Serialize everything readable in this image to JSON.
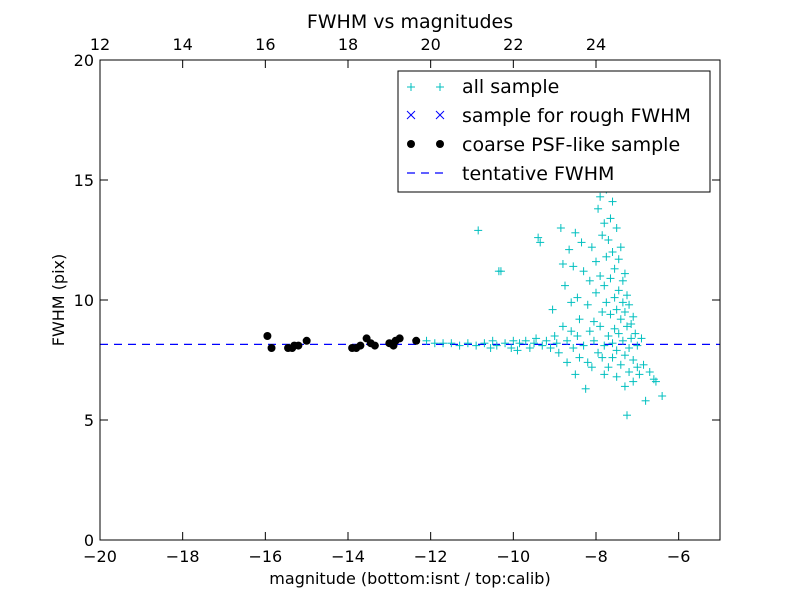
{
  "chart_data": {
    "type": "scatter",
    "title": "FWHM vs magnitudes",
    "xlabel": "magnitude (bottom:isnt / top:calib)",
    "ylabel": "FWHM (pix)",
    "xlim": [
      -20,
      -5
    ],
    "ylim": [
      0,
      20
    ],
    "x_ticks": [
      -20,
      -18,
      -16,
      -14,
      -12,
      -10,
      -8,
      -6
    ],
    "y_ticks": [
      0,
      5,
      10,
      15,
      20
    ],
    "top_axis": {
      "ticks": [
        12,
        14,
        16,
        18,
        20,
        22,
        24
      ],
      "offset_from_bottom": 32.0
    },
    "grid": false,
    "legend": {
      "placement": "top-right",
      "entries": [
        {
          "label": "all sample",
          "marker": "+",
          "color": "#00bfbf"
        },
        {
          "label": "sample for rough FWHM",
          "marker": "x",
          "color": "#0000ff"
        },
        {
          "label": "coarse PSF-like sample",
          "marker": "o",
          "color": "#000000"
        },
        {
          "label": "tentative FWHM",
          "marker": "--",
          "color": "#0000ff"
        }
      ]
    },
    "tentative_fwhm": 8.15,
    "series": [
      {
        "name": "all sample",
        "marker": "+",
        "color": "#00bfbf",
        "points": [
          [
            -12.1,
            8.3
          ],
          [
            -11.9,
            8.2
          ],
          [
            -11.7,
            8.2
          ],
          [
            -11.5,
            8.2
          ],
          [
            -11.3,
            8.1
          ],
          [
            -11.1,
            8.2
          ],
          [
            -10.9,
            8.1
          ],
          [
            -10.85,
            12.9
          ],
          [
            -10.7,
            8.2
          ],
          [
            -10.55,
            8.0
          ],
          [
            -10.5,
            8.3
          ],
          [
            -10.4,
            8.1
          ],
          [
            -10.35,
            11.2
          ],
          [
            -10.3,
            11.2
          ],
          [
            -10.2,
            8.2
          ],
          [
            -10.05,
            8.0
          ],
          [
            -10.0,
            8.3
          ],
          [
            -9.9,
            7.9
          ],
          [
            -9.85,
            8.2
          ],
          [
            -9.7,
            8.3
          ],
          [
            -9.6,
            8.0
          ],
          [
            -9.5,
            8.2
          ],
          [
            -9.45,
            8.4
          ],
          [
            -9.4,
            12.6
          ],
          [
            -9.35,
            12.4
          ],
          [
            -9.3,
            8.1
          ],
          [
            -9.2,
            8.3
          ],
          [
            -9.1,
            8.0
          ],
          [
            -9.05,
            9.6
          ],
          [
            -9.0,
            8.5
          ],
          [
            -8.95,
            8.2
          ],
          [
            -8.9,
            7.8
          ],
          [
            -8.85,
            13.0
          ],
          [
            -8.8,
            11.5
          ],
          [
            -8.8,
            8.9
          ],
          [
            -8.75,
            10.6
          ],
          [
            -8.7,
            8.3
          ],
          [
            -8.7,
            7.4
          ],
          [
            -8.65,
            12.1
          ],
          [
            -8.6,
            9.9
          ],
          [
            -8.6,
            8.7
          ],
          [
            -8.55,
            11.4
          ],
          [
            -8.55,
            8.0
          ],
          [
            -8.5,
            6.9
          ],
          [
            -8.5,
            12.8
          ],
          [
            -8.45,
            10.1
          ],
          [
            -8.45,
            8.5
          ],
          [
            -8.4,
            9.2
          ],
          [
            -8.4,
            7.6
          ],
          [
            -8.35,
            12.4
          ],
          [
            -8.3,
            11.2
          ],
          [
            -8.3,
            8.1
          ],
          [
            -8.25,
            6.3
          ],
          [
            -8.2,
            9.8
          ],
          [
            -8.2,
            7.4
          ],
          [
            -8.15,
            8.7
          ],
          [
            -8.15,
            10.8
          ],
          [
            -8.1,
            12.2
          ],
          [
            -8.1,
            7.2
          ],
          [
            -8.05,
            9.1
          ],
          [
            -8.05,
            8.3
          ],
          [
            -8.0,
            11.6
          ],
          [
            -8.0,
            10.3
          ],
          [
            -7.95,
            13.8
          ],
          [
            -7.95,
            7.8
          ],
          [
            -7.9,
            14.3
          ],
          [
            -7.9,
            8.9
          ],
          [
            -7.9,
            11.0
          ],
          [
            -7.85,
            12.7
          ],
          [
            -7.85,
            9.5
          ],
          [
            -7.85,
            7.6
          ],
          [
            -7.8,
            13.2
          ],
          [
            -7.8,
            10.6
          ],
          [
            -7.8,
            8.1
          ],
          [
            -7.8,
            6.9
          ],
          [
            -7.75,
            14.6
          ],
          [
            -7.75,
            11.8
          ],
          [
            -7.75,
            9.9
          ],
          [
            -7.7,
            12.5
          ],
          [
            -7.7,
            8.5
          ],
          [
            -7.7,
            7.2
          ],
          [
            -7.65,
            13.4
          ],
          [
            -7.65,
            10.9
          ],
          [
            -7.65,
            9.4
          ],
          [
            -7.6,
            14.1
          ],
          [
            -7.6,
            12.0
          ],
          [
            -7.6,
            8.2
          ],
          [
            -7.6,
            7.6
          ],
          [
            -7.55,
            11.3
          ],
          [
            -7.55,
            10.1
          ],
          [
            -7.55,
            8.8
          ],
          [
            -7.5,
            13.0
          ],
          [
            -7.5,
            9.6
          ],
          [
            -7.5,
            7.9
          ],
          [
            -7.5,
            6.8
          ],
          [
            -7.45,
            11.7
          ],
          [
            -7.45,
            10.4
          ],
          [
            -7.45,
            8.6
          ],
          [
            -7.4,
            12.2
          ],
          [
            -7.4,
            9.2
          ],
          [
            -7.4,
            7.3
          ],
          [
            -7.35,
            10.8
          ],
          [
            -7.35,
            9.9
          ],
          [
            -7.35,
            8.3
          ],
          [
            -7.3,
            11.1
          ],
          [
            -7.3,
            9.5
          ],
          [
            -7.3,
            7.7
          ],
          [
            -7.3,
            6.4
          ],
          [
            -7.25,
            10.2
          ],
          [
            -7.25,
            8.9
          ],
          [
            -7.25,
            5.2
          ],
          [
            -7.2,
            9.8
          ],
          [
            -7.2,
            8.0
          ],
          [
            -7.2,
            7.0
          ],
          [
            -7.15,
            9.0
          ],
          [
            -7.15,
            8.4
          ],
          [
            -7.1,
            9.3
          ],
          [
            -7.1,
            7.5
          ],
          [
            -7.1,
            6.6
          ],
          [
            -7.05,
            8.6
          ],
          [
            -7.0,
            8.1
          ],
          [
            -7.0,
            7.2
          ],
          [
            -6.95,
            6.9
          ],
          [
            -6.9,
            8.4
          ],
          [
            -6.85,
            7.3
          ],
          [
            -6.8,
            5.8
          ],
          [
            -6.7,
            7.0
          ],
          [
            -6.6,
            6.7
          ],
          [
            -6.55,
            6.6
          ],
          [
            -6.4,
            6.0
          ]
        ]
      },
      {
        "name": "coarse PSF-like sample",
        "marker": "o",
        "color": "#000000",
        "points": [
          [
            -15.95,
            8.5
          ],
          [
            -15.85,
            8.0
          ],
          [
            -15.45,
            8.0
          ],
          [
            -15.35,
            8.0
          ],
          [
            -15.3,
            8.1
          ],
          [
            -15.2,
            8.1
          ],
          [
            -15.0,
            8.3
          ],
          [
            -13.9,
            8.0
          ],
          [
            -13.8,
            8.0
          ],
          [
            -13.7,
            8.1
          ],
          [
            -13.55,
            8.4
          ],
          [
            -13.45,
            8.2
          ],
          [
            -13.35,
            8.1
          ],
          [
            -13.0,
            8.2
          ],
          [
            -12.9,
            8.1
          ],
          [
            -12.85,
            8.3
          ],
          [
            -12.75,
            8.4
          ],
          [
            -12.35,
            8.3
          ]
        ]
      }
    ]
  }
}
